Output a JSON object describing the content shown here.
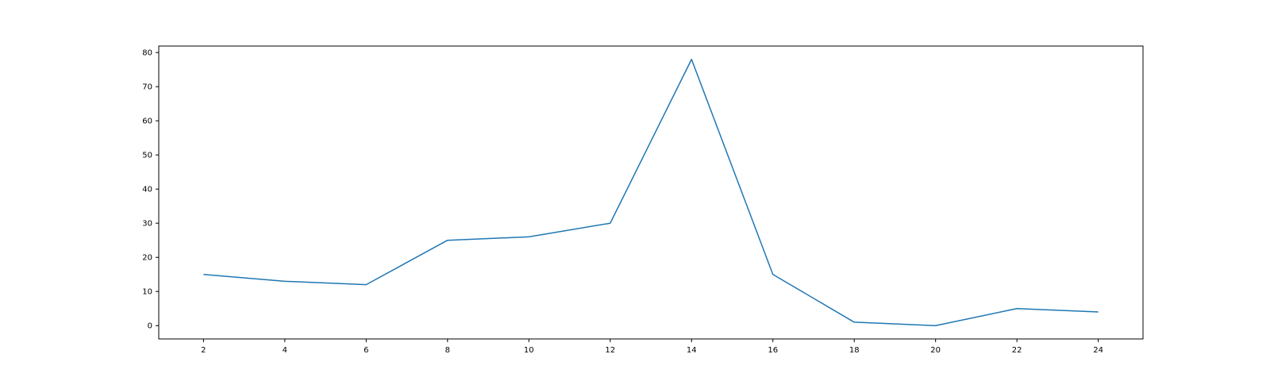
{
  "chart_data": {
    "type": "line",
    "title": "",
    "xlabel": "",
    "ylabel": "",
    "x": [
      2,
      4,
      6,
      8,
      10,
      12,
      14,
      16,
      18,
      20,
      22,
      24
    ],
    "series": [
      {
        "values": [
          15,
          13,
          12,
          25,
          26,
          30,
          78,
          15,
          1,
          0,
          5,
          4
        ],
        "color": "#1f77b4"
      }
    ],
    "xlim": [
      0.9,
      25.1
    ],
    "ylim": [
      -3.9,
      81.9
    ],
    "xticks": [
      2,
      4,
      6,
      8,
      10,
      12,
      14,
      16,
      18,
      20,
      22,
      24
    ],
    "yticks": [
      0,
      10,
      20,
      30,
      40,
      50,
      60,
      70,
      80
    ],
    "grid": false,
    "legend": "none"
  }
}
